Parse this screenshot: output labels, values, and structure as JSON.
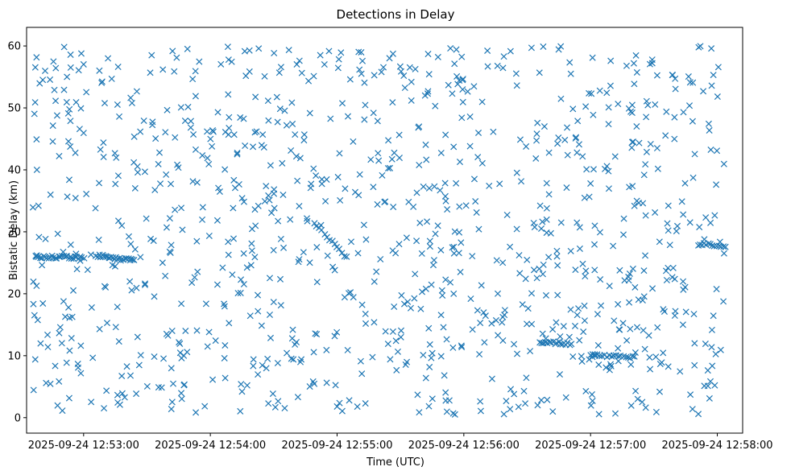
{
  "chart_data": {
    "type": "scatter",
    "title": "Detections in Delay",
    "xlabel": "Time (UTC)",
    "ylabel": "Bistatic Delay (km)",
    "marker": "x",
    "color": "#1f77b4",
    "x_unit": "minutes after 2025-09-24 12:53:00",
    "xlim": [
      -0.45,
      5.2
    ],
    "ylim": [
      -2.5,
      63
    ],
    "x_ticks": [
      {
        "value": 0,
        "label": "2025-09-24 12:53:00"
      },
      {
        "value": 1,
        "label": "2025-09-24 12:54:00"
      },
      {
        "value": 2,
        "label": "2025-09-24 12:55:00"
      },
      {
        "value": 3,
        "label": "2025-09-24 12:56:00"
      },
      {
        "value": 4,
        "label": "2025-09-24 12:57:00"
      },
      {
        "value": 5,
        "label": "2025-09-24 12:58:00"
      }
    ],
    "y_ticks": [
      {
        "value": 0,
        "label": "0"
      },
      {
        "value": 10,
        "label": "10"
      },
      {
        "value": 20,
        "label": "20"
      },
      {
        "value": 30,
        "label": "30"
      },
      {
        "value": 40,
        "label": "40"
      },
      {
        "value": 50,
        "label": "50"
      },
      {
        "value": 60,
        "label": "60"
      }
    ],
    "time_range": [
      -0.4,
      5.06
    ],
    "delay_range": [
      0.5,
      60
    ],
    "tracks": [
      {
        "t_start": -0.38,
        "t_end": 0.0,
        "delay_start": 26.0,
        "delay_end": 25.8,
        "count": 30
      },
      {
        "t_start": 0.1,
        "t_end": 0.4,
        "delay_start": 26.2,
        "delay_end": 25.3,
        "count": 26
      },
      {
        "t_start": 1.82,
        "t_end": 2.08,
        "delay_start": 31.5,
        "delay_end": 25.8,
        "count": 14
      },
      {
        "t_start": 3.6,
        "t_end": 3.85,
        "delay_start": 12.2,
        "delay_end": 11.9,
        "count": 18
      },
      {
        "t_start": 4.0,
        "t_end": 4.35,
        "delay_start": 10.0,
        "delay_end": 9.8,
        "count": 20
      },
      {
        "t_start": 4.85,
        "t_end": 5.06,
        "delay_start": 28.0,
        "delay_end": 27.8,
        "count": 14
      }
    ],
    "scattered_detection_count": 1000
  }
}
